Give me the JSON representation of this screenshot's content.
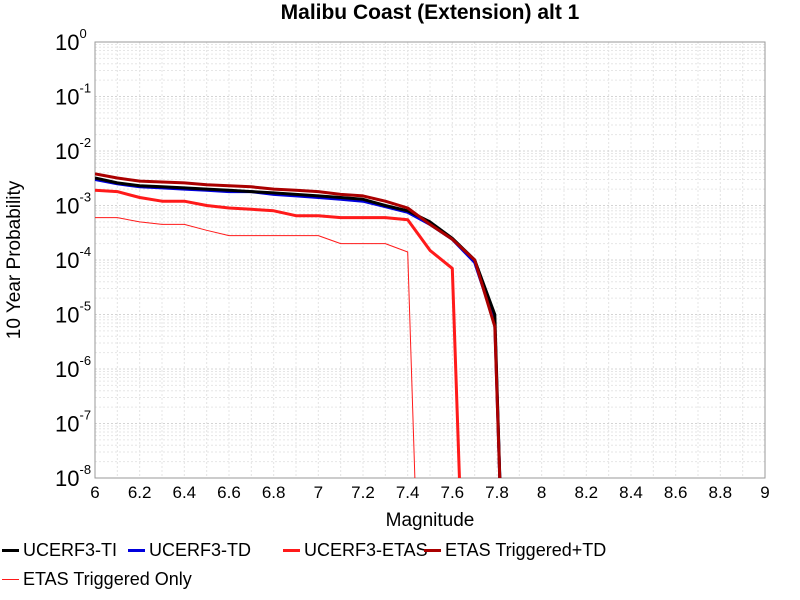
{
  "chart_data": {
    "type": "line",
    "title": "Malibu Coast (Extension) alt 1",
    "xlabel": "Magnitude",
    "ylabel": "10 Year Probability",
    "xlim": [
      6,
      9
    ],
    "ylim": [
      1e-08,
      1
    ],
    "yscale": "log",
    "grid": true,
    "x_ticks": [
      "6",
      "6.2",
      "6.4",
      "6.6",
      "6.8",
      "7",
      "7.2",
      "7.4",
      "7.6",
      "7.8",
      "8",
      "8.2",
      "8.4",
      "8.6",
      "8.8",
      "9"
    ],
    "y_ticks": [
      {
        "base": "10",
        "exp": "0"
      },
      {
        "base": "10",
        "exp": "-1"
      },
      {
        "base": "10",
        "exp": "-2"
      },
      {
        "base": "10",
        "exp": "-3"
      },
      {
        "base": "10",
        "exp": "-4"
      },
      {
        "base": "10",
        "exp": "-5"
      },
      {
        "base": "10",
        "exp": "-6"
      },
      {
        "base": "10",
        "exp": "-7"
      },
      {
        "base": "10",
        "exp": "-8"
      }
    ],
    "legend_position": "bottom",
    "series": [
      {
        "name": "UCERF3-TI",
        "color": "#000000",
        "width": 3,
        "x": [
          6.0,
          6.1,
          6.2,
          6.3,
          6.4,
          6.5,
          6.6,
          6.7,
          6.8,
          6.9,
          7.0,
          7.1,
          7.2,
          7.3,
          7.4,
          7.5,
          7.6,
          7.7,
          7.79,
          7.82
        ],
        "y": [
          0.0032,
          0.0026,
          0.0023,
          0.0022,
          0.0021,
          0.002,
          0.0019,
          0.0018,
          0.0017,
          0.0016,
          0.0015,
          0.0014,
          0.0013,
          0.001,
          0.0008,
          0.0005,
          0.00025,
          0.0001,
          1e-05,
          1e-09
        ]
      },
      {
        "name": "UCERF3-TD",
        "color": "#0000dd",
        "width": 3,
        "x": [
          6.0,
          6.1,
          6.2,
          6.3,
          6.4,
          6.5,
          6.6,
          6.7,
          6.8,
          6.9,
          7.0,
          7.1,
          7.2,
          7.3,
          7.4,
          7.5,
          7.6,
          7.7,
          7.79,
          7.82
        ],
        "y": [
          0.003,
          0.0025,
          0.0022,
          0.0021,
          0.002,
          0.0019,
          0.0018,
          0.0018,
          0.0016,
          0.0015,
          0.0014,
          0.0013,
          0.0012,
          0.00095,
          0.00075,
          0.00045,
          0.00024,
          9e-05,
          7e-06,
          1e-09
        ]
      },
      {
        "name": "UCERF3-ETAS",
        "color": "#ff1a1a",
        "width": 3,
        "x": [
          6.0,
          6.1,
          6.2,
          6.3,
          6.4,
          6.5,
          6.6,
          6.7,
          6.8,
          6.9,
          7.0,
          7.1,
          7.2,
          7.3,
          7.4,
          7.5,
          7.6,
          7.64
        ],
        "y": [
          0.0019,
          0.0018,
          0.0014,
          0.0012,
          0.0012,
          0.001,
          0.0009,
          0.00085,
          0.0008,
          0.00065,
          0.00065,
          0.0006,
          0.0006,
          0.0006,
          0.00055,
          0.00015,
          7e-05,
          1e-09
        ]
      },
      {
        "name": "ETAS Triggered+TD",
        "color": "#aa0000",
        "width": 3,
        "x": [
          6.0,
          6.1,
          6.2,
          6.3,
          6.4,
          6.5,
          6.6,
          6.7,
          6.8,
          6.9,
          7.0,
          7.1,
          7.2,
          7.3,
          7.4,
          7.5,
          7.6,
          7.7,
          7.79,
          7.82
        ],
        "y": [
          0.0038,
          0.0032,
          0.0028,
          0.0027,
          0.0026,
          0.0024,
          0.0023,
          0.0022,
          0.002,
          0.0019,
          0.0018,
          0.0016,
          0.0015,
          0.0012,
          0.0009,
          0.00045,
          0.00024,
          0.0001,
          6e-06,
          1e-09
        ]
      },
      {
        "name": "ETAS Triggered Only",
        "color": "#ff1a1a",
        "width": 1,
        "x": [
          6.0,
          6.1,
          6.2,
          6.3,
          6.4,
          6.5,
          6.6,
          6.7,
          6.8,
          6.9,
          7.0,
          7.1,
          7.2,
          7.3,
          7.4,
          7.44
        ],
        "y": [
          0.0006,
          0.0006,
          0.0005,
          0.00045,
          0.00045,
          0.00035,
          0.00028,
          0.00028,
          0.00028,
          0.00028,
          0.00028,
          0.0002,
          0.0002,
          0.0002,
          0.00014,
          1e-09
        ]
      }
    ]
  }
}
